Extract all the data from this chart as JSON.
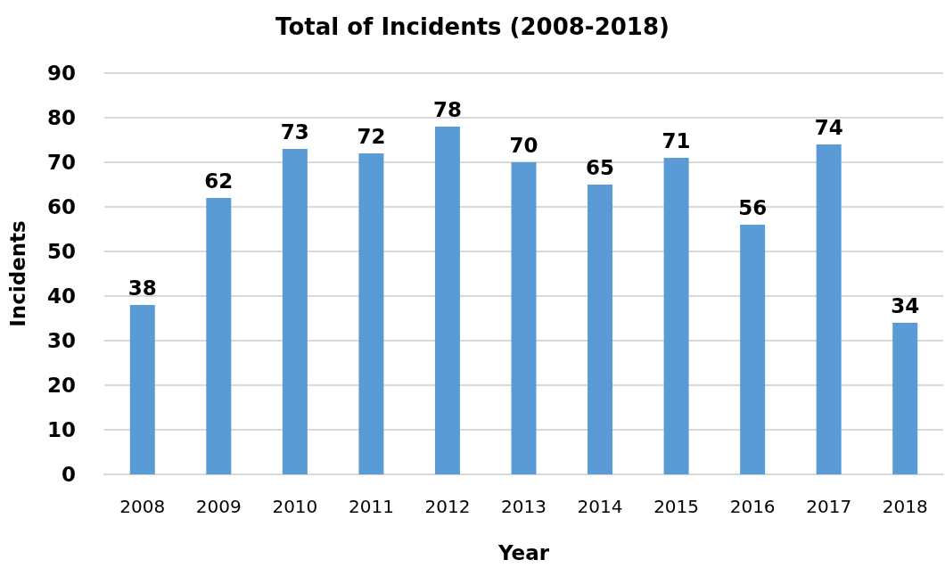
{
  "chart_data": {
    "type": "bar",
    "title": "Total of Incidents (2008-2018)",
    "xlabel": "Year",
    "ylabel": "Incidents",
    "categories": [
      "2008",
      "2009",
      "2010",
      "2011",
      "2012",
      "2013",
      "2014",
      "2015",
      "2016",
      "2017",
      "2018"
    ],
    "values": [
      38,
      62,
      73,
      72,
      78,
      70,
      65,
      71,
      56,
      74,
      34
    ],
    "color": "#5b9bd5",
    "ylim": [
      0,
      90
    ],
    "yticks": [
      0,
      10,
      20,
      30,
      40,
      50,
      60,
      70,
      80,
      90
    ],
    "grid": "y",
    "data_labels": true
  }
}
